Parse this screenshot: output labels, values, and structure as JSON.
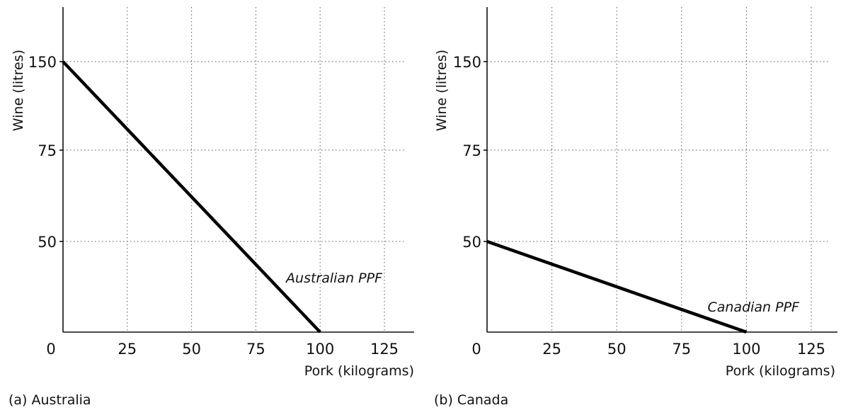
{
  "chart_data": [
    {
      "type": "line",
      "caption": "(a) Australia",
      "xlabel": "Pork (kilograms)",
      "ylabel": "Wine (litres)",
      "x_ticks": [
        0,
        25,
        50,
        75,
        100,
        125
      ],
      "x_tick_labels": [
        "0",
        "25",
        "50",
        "75",
        "100",
        "125"
      ],
      "y_ticks": [
        150,
        75,
        50
      ],
      "y_tick_labels": [
        "150",
        "75",
        "50"
      ],
      "grid": true,
      "series": [
        {
          "name": "Australian PPF",
          "x": [
            0,
            100
          ],
          "y": [
            150,
            0
          ]
        }
      ]
    },
    {
      "type": "line",
      "caption": "(b) Canada",
      "xlabel": "Pork (kilograms)",
      "ylabel": "Wine (litres)",
      "x_ticks": [
        0,
        25,
        50,
        75,
        100,
        125
      ],
      "x_tick_labels": [
        "0",
        "25",
        "50",
        "75",
        "100",
        "125"
      ],
      "y_ticks": [
        150,
        75,
        50
      ],
      "y_tick_labels": [
        "150",
        "75",
        "50"
      ],
      "grid": true,
      "series": [
        {
          "name": "Canadian PPF",
          "x": [
            0,
            100
          ],
          "y": [
            50,
            0
          ]
        }
      ]
    }
  ]
}
